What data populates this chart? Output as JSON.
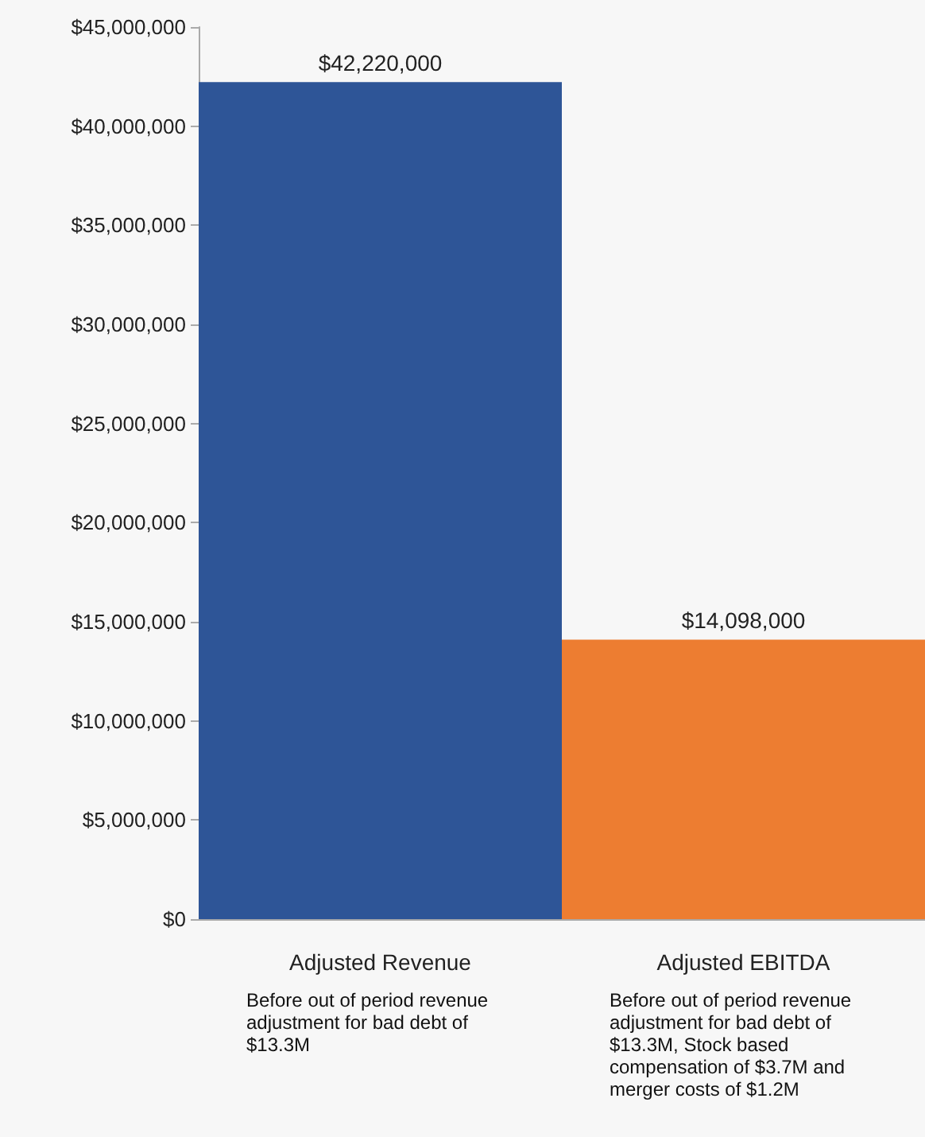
{
  "chart_data": {
    "type": "bar",
    "categories": [
      "Adjusted Revenue",
      "Adjusted EBITDA"
    ],
    "values": [
      42220000,
      14098000
    ],
    "colors": [
      "#2e5597",
      "#ed7d31"
    ],
    "value_labels": [
      "$42,220,000",
      "$14,098,000"
    ],
    "ylim": [
      0,
      45000000
    ],
    "yticks": [
      {
        "value": 0,
        "label": "$0"
      },
      {
        "value": 5000000,
        "label": "$5,000,000"
      },
      {
        "value": 10000000,
        "label": "$10,000,000"
      },
      {
        "value": 15000000,
        "label": "$15,000,000"
      },
      {
        "value": 20000000,
        "label": "$20,000,000"
      },
      {
        "value": 25000000,
        "label": "$25,000,000"
      },
      {
        "value": 30000000,
        "label": "$30,000,000"
      },
      {
        "value": 35000000,
        "label": "$35,000,000"
      },
      {
        "value": 40000000,
        "label": "$40,000,000"
      },
      {
        "value": 45000000,
        "label": "$45,000,000"
      }
    ],
    "annotations": [
      "Before out of period revenue\nadjustment for bad debt of\n$13.3M",
      "Before out of period revenue\nadjustment for bad debt of\n$13.3M, Stock based\ncompensation of $3.7M and\nmerger costs of $1.2M"
    ],
    "grid": false
  }
}
